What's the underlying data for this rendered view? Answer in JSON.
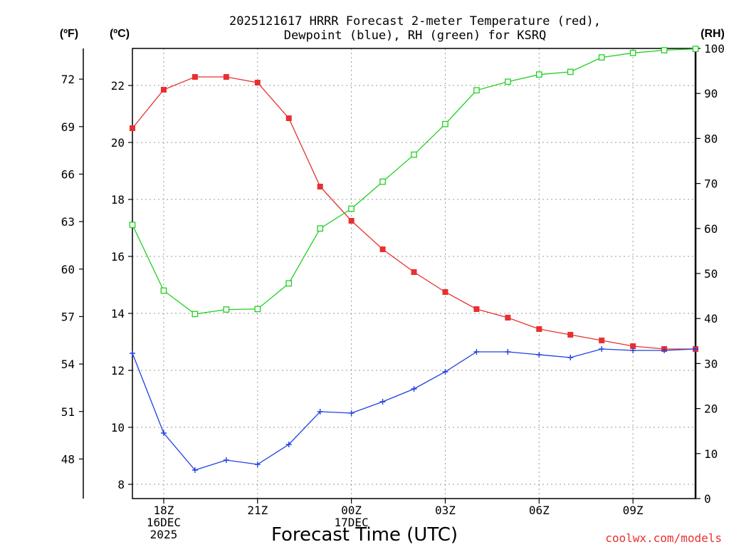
{
  "chart_data": {
    "type": "line",
    "title_line1": "2025121617 HRRR Forecast 2-meter Temperature (red),",
    "title_line2": "Dewpoint (blue), RH (green) for KSRQ",
    "units": {
      "fahrenheit": "(ºF)",
      "celsius": "(ºC)",
      "rh": "(RH)"
    },
    "xlabel": "Forecast Time (UTC)",
    "x_ticks": [
      {
        "hour": 1,
        "lines": [
          "18Z",
          "16DEC",
          "2025"
        ]
      },
      {
        "hour": 4,
        "lines": [
          "21Z"
        ]
      },
      {
        "hour": 7,
        "lines": [
          "00Z",
          "17DEC"
        ]
      },
      {
        "hour": 10,
        "lines": [
          "03Z"
        ]
      },
      {
        "hour": 13,
        "lines": [
          "06Z"
        ]
      },
      {
        "hour": 16,
        "lines": [
          "09Z"
        ]
      }
    ],
    "xlim": [
      0,
      18
    ],
    "celsius_axis": {
      "ylim": [
        7.5,
        23.3
      ],
      "ticks": [
        8,
        10,
        12,
        14,
        16,
        18,
        20,
        22
      ]
    },
    "fahrenheit_axis": {
      "ticks": [
        48,
        51,
        54,
        57,
        60,
        63,
        66,
        69,
        72
      ]
    },
    "rh_axis": {
      "ylim": [
        0,
        100
      ],
      "ticks": [
        0,
        10,
        20,
        30,
        40,
        50,
        60,
        70,
        80,
        90,
        100
      ]
    },
    "series": [
      {
        "name": "2-meter Temperature",
        "axis": "celsius",
        "color": "#e83030",
        "marker": "filled-square",
        "values": [
          20.5,
          21.85,
          22.3,
          22.3,
          22.1,
          20.85,
          18.45,
          17.25,
          16.25,
          15.45,
          14.75,
          14.15,
          13.85,
          13.45,
          13.25,
          13.05,
          12.85,
          12.75,
          12.75
        ]
      },
      {
        "name": "Dewpoint",
        "axis": "celsius",
        "color": "#2040e0",
        "marker": "plus",
        "values": [
          12.6,
          9.8,
          8.5,
          8.85,
          8.7,
          9.4,
          10.55,
          10.5,
          10.9,
          11.35,
          11.95,
          12.65,
          12.65,
          12.55,
          12.45,
          12.75,
          12.7,
          12.7,
          12.75
        ]
      },
      {
        "name": "RH",
        "axis": "rh",
        "color": "#20d020",
        "marker": "open-square",
        "values": [
          60.8,
          46.2,
          41.0,
          42.0,
          42.1,
          47.8,
          60.0,
          64.4,
          70.4,
          76.4,
          83.2,
          90.7,
          92.6,
          94.2,
          94.8,
          98.0,
          99.0,
          99.6,
          99.9
        ]
      }
    ],
    "grid": true,
    "watermark": "coolwx.com/models"
  }
}
